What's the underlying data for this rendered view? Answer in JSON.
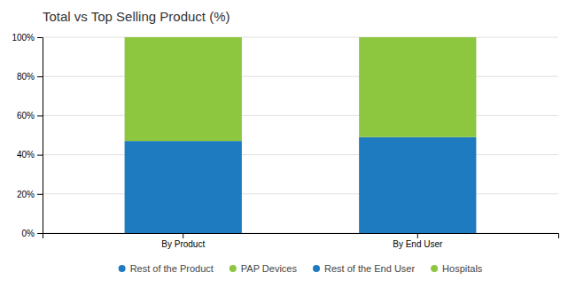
{
  "chart_data": {
    "type": "bar",
    "title": "Total vs Top Selling Product (%)",
    "categories": [
      "By Product",
      "By End User"
    ],
    "series": [
      {
        "name": "Rest of the Product",
        "color": "#1f7bbf",
        "values": [
          47,
          null
        ]
      },
      {
        "name": "PAP Devices",
        "color": "#8dc63f",
        "values": [
          53,
          null
        ]
      },
      {
        "name": "Rest of the End User",
        "color": "#1f7bbf",
        "values": [
          null,
          49
        ]
      },
      {
        "name": "Hospitals",
        "color": "#8dc63f",
        "values": [
          null,
          51
        ]
      }
    ],
    "stacked": true,
    "ylim": [
      0,
      100
    ],
    "yticks": [
      {
        "value": 0,
        "label": "0%"
      },
      {
        "value": 20,
        "label": "20%"
      },
      {
        "value": 40,
        "label": "40%"
      },
      {
        "value": 60,
        "label": "60%"
      },
      {
        "value": 80,
        "label": "80%"
      },
      {
        "value": 100,
        "label": "100%"
      }
    ],
    "grid": true,
    "legend": "bottom"
  }
}
